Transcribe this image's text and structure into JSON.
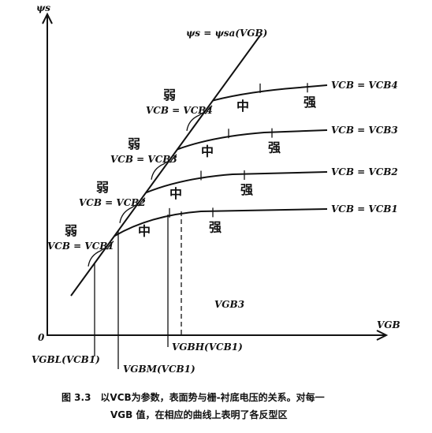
{
  "axes": {
    "y_label": "ψs",
    "x_label": "VGB",
    "origin": "0"
  },
  "line_label": "ψs = ψsa(VGB)",
  "curves": [
    {
      "label": "VCB = VCB1",
      "weak": "弱",
      "weak_condition": "VCB = VCB1",
      "moderate": "中",
      "strong": "强"
    },
    {
      "label": "VCB = VCB2",
      "weak": "弱",
      "weak_condition": "VCB = VCB2",
      "moderate": "中",
      "strong": "强"
    },
    {
      "label": "VCB = VCB3",
      "weak": "弱",
      "weak_condition": "VCB = VCB3",
      "moderate": "中",
      "strong": "强"
    },
    {
      "label": "VCB = VCB4",
      "weak": "弱",
      "weak_condition": "VCB = VCB4",
      "moderate": "中",
      "strong": "强"
    }
  ],
  "x_markers": [
    "VGBL(VCB1)",
    "VGBM(VCB1)",
    "VGBH(VCB1)",
    "VGB3"
  ],
  "caption": [
    "图 3.3　以VCB为参数，表面势与栅-衬底电压的关系。对每一",
    "VGB 值，在相应的曲线上表明了各反型区"
  ]
}
